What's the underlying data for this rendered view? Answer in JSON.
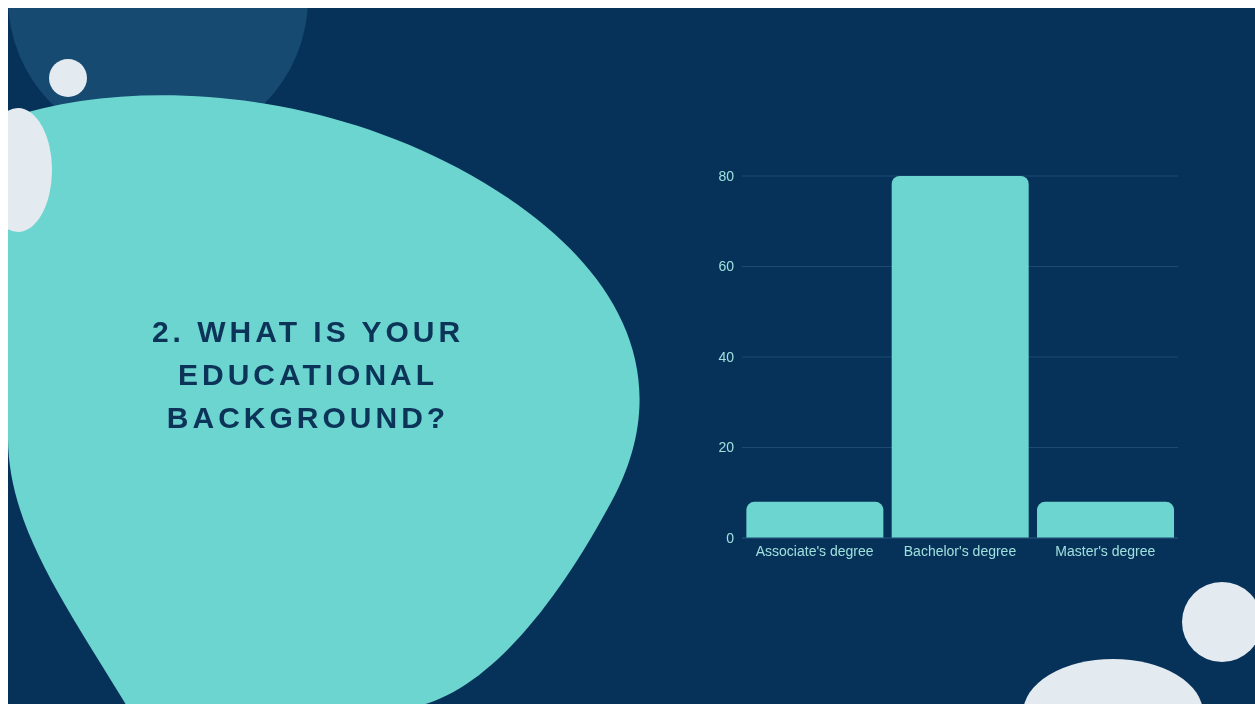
{
  "chart_data": {
    "type": "bar",
    "title": "2. WHAT IS YOUR EDUCATIONAL BACKGROUND?",
    "categories": [
      "Associate's degree",
      "Bachelor's degree",
      "Master's degree"
    ],
    "values": [
      8,
      80,
      8
    ],
    "color": "#6dd5cf",
    "ylim": [
      0,
      80
    ],
    "yticks": [
      0,
      20,
      40,
      60,
      80
    ],
    "grid": "y"
  }
}
